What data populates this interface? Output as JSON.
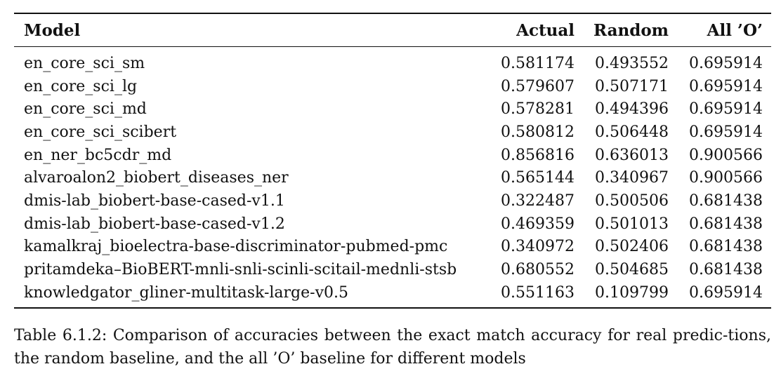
{
  "table": {
    "headers": {
      "model": "Model",
      "actual": "Actual",
      "random": "Random",
      "all_o": "All ’O’"
    },
    "rows": [
      {
        "model": "en_core_sci_sm",
        "actual": "0.581174",
        "random": "0.493552",
        "all_o": "0.695914"
      },
      {
        "model": "en_core_sci_lg",
        "actual": "0.579607",
        "random": "0.507171",
        "all_o": "0.695914"
      },
      {
        "model": "en_core_sci_md",
        "actual": "0.578281",
        "random": "0.494396",
        "all_o": "0.695914"
      },
      {
        "model": "en_core_sci_scibert",
        "actual": "0.580812",
        "random": "0.506448",
        "all_o": "0.695914"
      },
      {
        "model": "en_ner_bc5cdr_md",
        "actual": "0.856816",
        "random": "0.636013",
        "all_o": "0.900566"
      },
      {
        "model": "alvaroalon2_biobert_diseases_ner",
        "actual": "0.565144",
        "random": "0.340967",
        "all_o": "0.900566"
      },
      {
        "model": "dmis-lab_biobert-base-cased-v1.1",
        "actual": "0.322487",
        "random": "0.500506",
        "all_o": "0.681438"
      },
      {
        "model": "dmis-lab_biobert-base-cased-v1.2",
        "actual": "0.469359",
        "random": "0.501013",
        "all_o": "0.681438"
      },
      {
        "model": "kamalkraj_bioelectra-base-discriminator-pubmed-pmc",
        "actual": "0.340972",
        "random": "0.502406",
        "all_o": "0.681438"
      },
      {
        "model": "pritamdeka–BioBERT-mnli-snli-scinli-scitail-mednli-stsb",
        "actual": "0.680552",
        "random": "0.504685",
        "all_o": "0.681438"
      },
      {
        "model": "knowledgator_gliner-multitask-large-v0.5",
        "actual": "0.551163",
        "random": "0.109799",
        "all_o": "0.695914"
      }
    ]
  },
  "caption": "Table 6.1.2: Comparison of accuracies between the exact match accuracy for real predic-tions, the random baseline, and the all ’O’ baseline for different models"
}
